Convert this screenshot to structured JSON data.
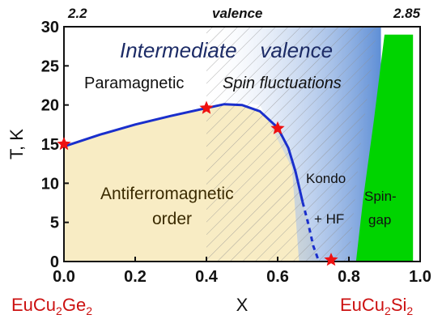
{
  "chart_data": {
    "type": "phase-diagram",
    "xlabel": "X",
    "ylabel": "T, K",
    "xlim": [
      0.0,
      1.0
    ],
    "ylim": [
      0,
      30
    ],
    "x_ticks": [
      "0.0",
      "0.2",
      "0.4",
      "0.6",
      "0.8",
      "1.0"
    ],
    "y_ticks": [
      "0",
      "5",
      "10",
      "15",
      "20",
      "25",
      "30"
    ],
    "top_axis": {
      "label": "valence",
      "left": "2.2",
      "right": "2.85"
    },
    "compounds": {
      "left": {
        "base": "EuCu",
        "sub1": "2",
        "mid": "Ge",
        "sub2": "2"
      },
      "right": {
        "base": "EuCu",
        "sub1": "2",
        "mid": "Si",
        "sub2": "2"
      }
    },
    "series": [
      {
        "kind": "transition-line",
        "color": "#1a2fcc",
        "points": [
          [
            0.0,
            14.7
          ],
          [
            0.1,
            16.2
          ],
          [
            0.2,
            17.5
          ],
          [
            0.3,
            18.6
          ],
          [
            0.4,
            19.6
          ],
          [
            0.45,
            20.1
          ],
          [
            0.5,
            20.0
          ],
          [
            0.55,
            19.2
          ],
          [
            0.6,
            17.1
          ],
          [
            0.63,
            14.5
          ],
          [
            0.65,
            11.5
          ],
          [
            0.67,
            7.6
          ]
        ],
        "dashed_points": [
          [
            0.67,
            7.6
          ],
          [
            0.685,
            5.0
          ],
          [
            0.7,
            2.0
          ],
          [
            0.715,
            0.1
          ]
        ]
      }
    ],
    "stars": [
      [
        0.0,
        15.0
      ],
      [
        0.4,
        19.6
      ],
      [
        0.6,
        17.0
      ],
      [
        0.75,
        0.2
      ]
    ],
    "regions": [
      {
        "text": "Intermediate    valence",
        "style": "italic",
        "color": "#2a4fa8"
      },
      {
        "text": "Paramagnetic"
      },
      {
        "text": "Spin fluctuations",
        "style": "italic"
      },
      {
        "text": "Kondo"
      },
      {
        "text": "+ HF"
      },
      {
        "lines": [
          "Antiferromagnetic",
          "order"
        ]
      },
      {
        "lines": [
          "Spin-",
          "gap"
        ]
      }
    ],
    "colors": {
      "afm_fill": "#f8ecc4",
      "intermediate_fill": "#7aa2dd",
      "spin_gap_fill": "#00d400",
      "star": "#ee1111",
      "compound_text": "#cc1111"
    }
  }
}
